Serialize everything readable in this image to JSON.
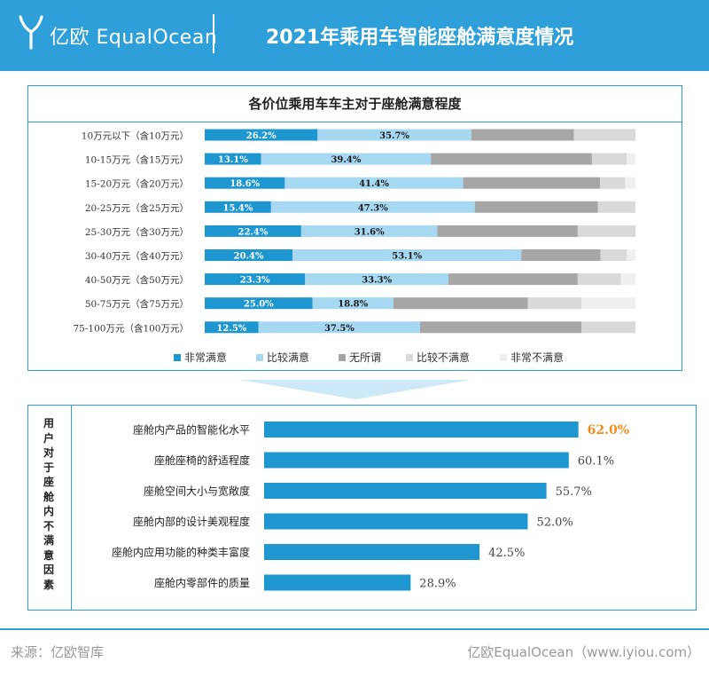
{
  "header": {
    "brand": "亿欧 EqualOcean",
    "title": "2021年乘用车智能座舱满意度情况"
  },
  "colors": {
    "brand": "#2e9fd8",
    "very_satisfied": "#1e96d0",
    "satisfied": "#a6d8f2",
    "neutral": "#a6a6a6",
    "unsatisfied": "#d9d9d9",
    "very_unsatisfied": "#efefef",
    "highlight": "#f08c1e"
  },
  "chart_data": [
    {
      "type": "bar",
      "orientation": "horizontal",
      "stacked": true,
      "title": "各价位乘用车车主对于座舱满意程度",
      "categories": [
        "10万元以下（含10万元）",
        "10-15万元（含15万元）",
        "15-20万元（含20万元）",
        "20-25万元（含25万元）",
        "25-30万元（含30万元）",
        "30-40万元（含40万元）",
        "40-50万元（含50万元）",
        "50-75万元（含75万元）",
        "75-100万元（含100万元）"
      ],
      "series": [
        {
          "name": "非常满意",
          "values": [
            26.2,
            13.1,
            18.6,
            15.4,
            22.4,
            20.4,
            23.3,
            25.0,
            12.5
          ],
          "labels": [
            "26.2%",
            "13.1%",
            "18.6%",
            "15.4%",
            "22.4%",
            "20.4%",
            "23.3%",
            "25.0%",
            "12.5%"
          ]
        },
        {
          "name": "比较满意",
          "values": [
            35.7,
            39.4,
            41.4,
            47.3,
            31.6,
            53.1,
            33.3,
            18.8,
            37.5
          ],
          "labels": [
            "35.7%",
            "39.4%",
            "41.4%",
            "47.3%",
            "31.6%",
            "53.1%",
            "33.3%",
            "18.8%",
            "37.5%"
          ]
        },
        {
          "name": "无所谓",
          "values": [
            23.8,
            37.4,
            31.8,
            28.6,
            32.6,
            18.4,
            30.0,
            31.2,
            37.5
          ]
        },
        {
          "name": "比较不满意",
          "values": [
            14.3,
            8.1,
            5.8,
            8.7,
            13.4,
            6.1,
            10.0,
            12.5,
            12.5
          ]
        },
        {
          "name": "非常不满意",
          "values": [
            0,
            2.0,
            2.4,
            0,
            0,
            2.0,
            3.4,
            12.5,
            0
          ]
        }
      ],
      "xlim": [
        0,
        100
      ],
      "legend_position": "bottom"
    },
    {
      "type": "bar",
      "orientation": "horizontal",
      "title": "用户对于座舱内不满意因素",
      "categories": [
        "座舱内产品的智能化水平",
        "座舱座椅的舒适程度",
        "座舱空间大小与宽敞度",
        "座舱内部的设计美观程度",
        "座舱内应用功能的种类丰富度",
        "座舱内零部件的质量"
      ],
      "values": [
        62.0,
        60.1,
        55.7,
        52.0,
        42.5,
        28.9
      ],
      "value_labels": [
        "62.0%",
        "60.1%",
        "55.7%",
        "52.0%",
        "42.5%",
        "28.9%"
      ],
      "highlighted_index": 0
    }
  ],
  "footer": {
    "source": "来源：亿欧智库",
    "brand": "亿欧EqualOcean（www.iyiou.com）"
  }
}
